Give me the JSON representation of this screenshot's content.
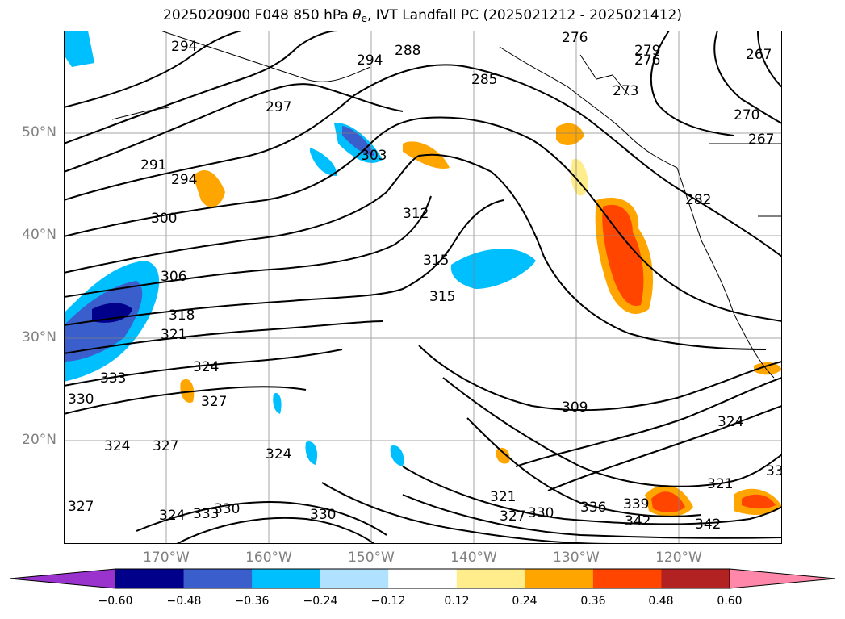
{
  "title": {
    "prefix": "2025020900 F048 850 hPa ",
    "theta": "θ",
    "theta_sub": "e",
    "suffix": ", IVT Landfall PC (2025021212 - 2025021412)"
  },
  "lat_labels": [
    "50°N",
    "40°N",
    "30°N",
    "20°N"
  ],
  "lon_labels": [
    "170°W",
    "160°W",
    "150°W",
    "140°W",
    "130°W",
    "120°W"
  ],
  "contour_labels": [
    "294",
    "294",
    "288",
    "285",
    "276",
    "279",
    "276",
    "273",
    "267",
    "270",
    "267",
    "297",
    "291",
    "294",
    "303",
    "312",
    "300",
    "306",
    "315",
    "315",
    "318",
    "321",
    "324",
    "327",
    "333",
    "330",
    "327",
    "324",
    "324",
    "309",
    "324",
    "327",
    "321",
    "324",
    "333",
    "330",
    "330",
    "327",
    "330",
    "336",
    "339",
    "342",
    "342",
    "321",
    "33",
    "282"
  ],
  "colorbar": {
    "ticks": [
      "−0.60",
      "−0.48",
      "−0.36",
      "−0.24",
      "−0.12",
      "0.12",
      "0.24",
      "0.36",
      "0.48",
      "0.60"
    ],
    "colors": [
      "#9a32cd",
      "#00008b",
      "#3a5fcd",
      "#00bfff",
      "#b0e2ff",
      "#ffffff",
      "#ffec8b",
      "#ffa500",
      "#ff4500",
      "#b22222",
      "#ff88aa",
      "#ff88aa"
    ]
  }
}
